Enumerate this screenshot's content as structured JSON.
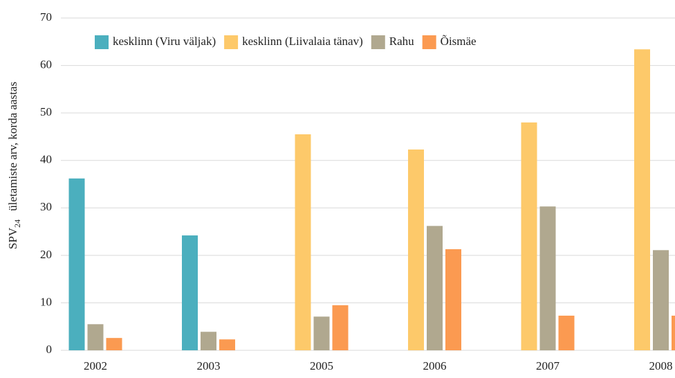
{
  "chart_data": {
    "type": "bar",
    "y_label": {
      "main": "SPV",
      "sub": "24",
      "rest": "ületamiste arv, korda aastas"
    },
    "categories": [
      "2002",
      "2003",
      "2005",
      "2006",
      "2007",
      "2008"
    ],
    "series": [
      {
        "name": "kesklinn (Viru väljak)",
        "color": "#4bafbe",
        "values": [
          36.2,
          24.2,
          null,
          null,
          null,
          null
        ]
      },
      {
        "name": "kesklinn (Liivalaia tänav)",
        "color": "#fdc96a",
        "values": [
          null,
          null,
          45.5,
          42.3,
          48.0,
          63.4
        ]
      },
      {
        "name": "Rahu",
        "color": "#b0a88f",
        "values": [
          5.5,
          3.9,
          7.1,
          26.2,
          30.3,
          21.1
        ]
      },
      {
        "name": "Õismäe",
        "color": "#fb9a51",
        "values": [
          2.6,
          2.3,
          9.5,
          21.3,
          7.3,
          7.3
        ]
      }
    ],
    "ylim": [
      0,
      70
    ],
    "yticks": [
      0,
      10,
      20,
      30,
      40,
      50,
      60,
      70
    ],
    "grid": true,
    "legend": "top"
  }
}
